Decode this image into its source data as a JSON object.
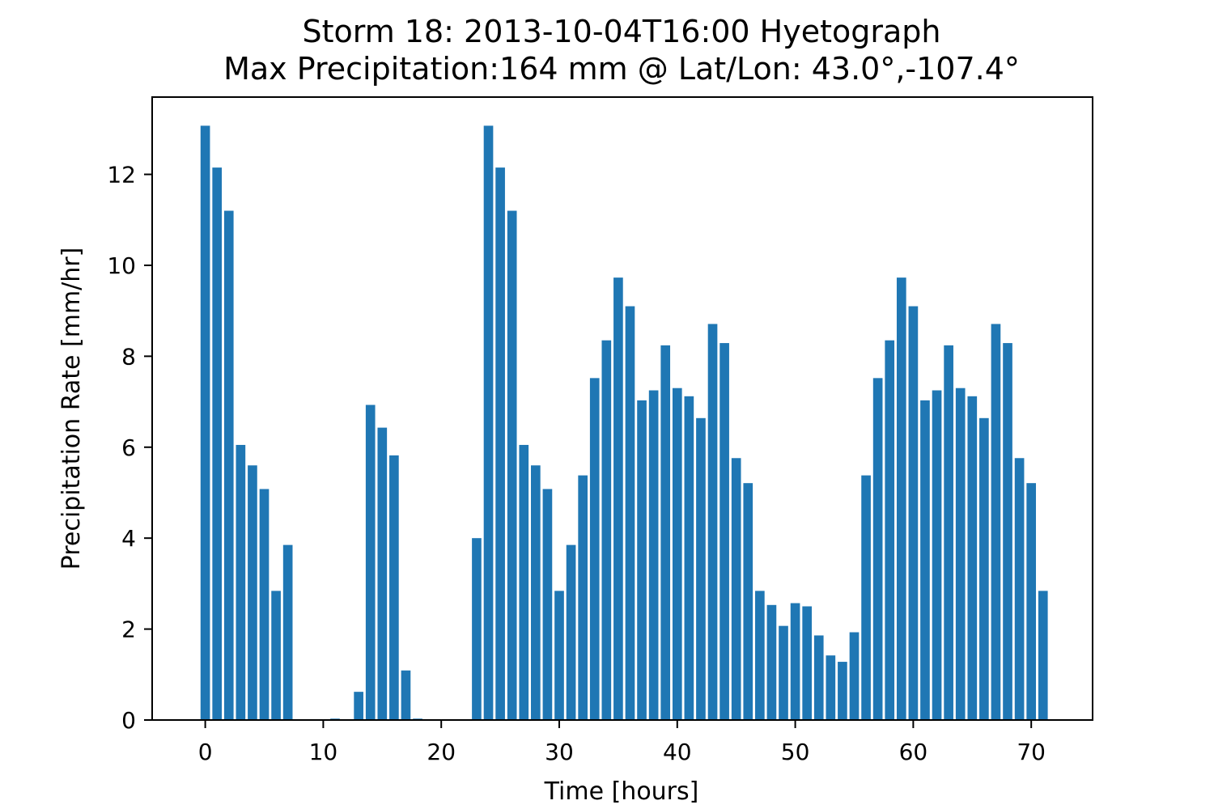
{
  "chart_data": {
    "type": "bar",
    "title": "Storm 18: 2013-10-04T16:00 Hyetograph",
    "subtitle": "Max Precipitation:164 mm @ Lat/Lon:  43.0°,-107.4°",
    "xlabel": "Time [hours]",
    "ylabel": "Precipitation Rate [mm/hr]",
    "xlim": [
      -4.5,
      75.2
    ],
    "ylim": [
      0,
      13.7
    ],
    "xticks": [
      0,
      10,
      20,
      30,
      40,
      50,
      60,
      70
    ],
    "yticks": [
      0,
      2,
      4,
      6,
      8,
      10,
      12
    ],
    "bar_width": 0.8,
    "grid": false,
    "color": "#1f77b4",
    "x": [
      0,
      1,
      2,
      3,
      4,
      5,
      6,
      7,
      8,
      9,
      10,
      11,
      12,
      13,
      14,
      15,
      16,
      17,
      18,
      19,
      20,
      21,
      22,
      23,
      24,
      25,
      26,
      27,
      28,
      29,
      30,
      31,
      32,
      33,
      34,
      35,
      36,
      37,
      38,
      39,
      40,
      41,
      42,
      43,
      44,
      45,
      46,
      47,
      48,
      49,
      50,
      51,
      52,
      53,
      54,
      55,
      56,
      57,
      58,
      59,
      60,
      61,
      62,
      63,
      64,
      65,
      66,
      67,
      68,
      69,
      70,
      71
    ],
    "values": [
      13.07,
      12.15,
      11.2,
      6.05,
      5.6,
      5.08,
      2.84,
      3.85,
      0,
      0,
      0,
      0.03,
      0,
      0.62,
      6.93,
      6.43,
      5.82,
      1.09,
      0.03,
      0,
      0,
      0,
      0,
      4,
      13.07,
      12.15,
      11.2,
      6.05,
      5.6,
      5.08,
      2.84,
      3.85,
      5.38,
      7.52,
      8.35,
      9.73,
      9.1,
      7.03,
      7.25,
      8.24,
      7.3,
      7.12,
      6.64,
      8.71,
      8.29,
      5.76,
      5.21,
      2.84,
      2.53,
      2.07,
      2.57,
      2.5,
      1.86,
      1.42,
      1.28,
      1.93,
      5.38,
      7.52,
      8.35,
      9.73,
      9.1,
      7.03,
      7.25,
      8.24,
      7.3,
      7.12,
      6.64,
      8.71,
      8.29,
      5.76,
      5.21,
      2.84
    ]
  }
}
